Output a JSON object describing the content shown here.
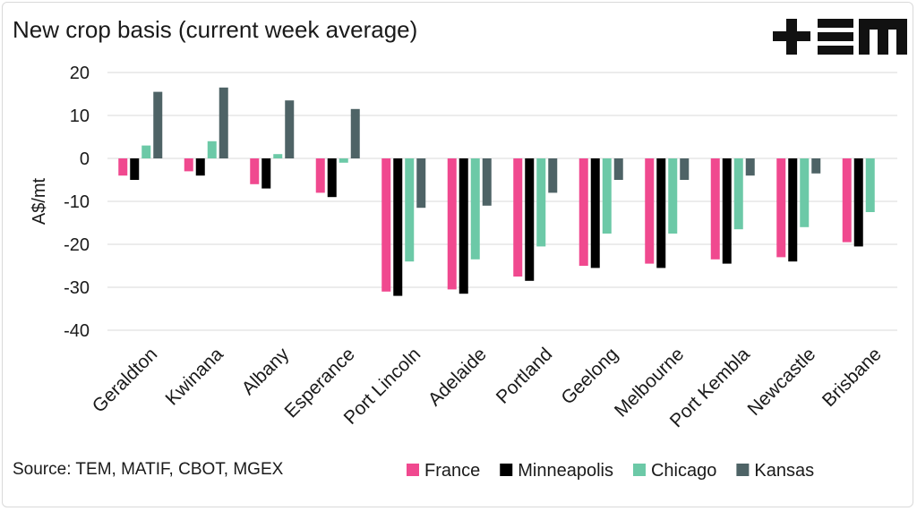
{
  "title": "New crop basis (current week average)",
  "source": "Source: TEM, MATIF, CBOT, MGEX",
  "logo": {
    "name": "TEM"
  },
  "chart_data": {
    "type": "bar",
    "ylabel": "A$/mt",
    "ylim": [
      -40,
      20
    ],
    "yticks": [
      20,
      10,
      0,
      -10,
      -20,
      -30,
      -40
    ],
    "grid": true,
    "legend_position": "bottom",
    "categories": [
      "Geraldton",
      "Kwinana",
      "Albany",
      "Esperance",
      "Port Lincoln",
      "Adelaide",
      "Portland",
      "Geelong",
      "Melbourne",
      "Port Kembla",
      "Newcastle",
      "Brisbane"
    ],
    "series": [
      {
        "name": "France",
        "color": "#f0498f",
        "values": [
          -4,
          -3,
          -6,
          -8,
          -31,
          -30.5,
          -27.5,
          -25,
          -24.5,
          -23.5,
          -23,
          -19.5
        ]
      },
      {
        "name": "Minneapolis",
        "color": "#000000",
        "values": [
          -5,
          -4,
          -7,
          -9,
          -32,
          -31.5,
          -28.5,
          -25.5,
          -25.5,
          -24.5,
          -24,
          -20.5
        ]
      },
      {
        "name": "Chicago",
        "color": "#6cc9a7",
        "values": [
          3,
          4,
          1,
          -1,
          -24,
          -23.5,
          -20.5,
          -17.5,
          -17.5,
          -16.5,
          -16,
          -12.5
        ]
      },
      {
        "name": "Kansas",
        "color": "#4e6366",
        "values": [
          15.5,
          16.5,
          13.5,
          11.5,
          -11.5,
          -11,
          -8,
          -5,
          -5,
          -4,
          -3.5,
          null
        ]
      }
    ]
  }
}
